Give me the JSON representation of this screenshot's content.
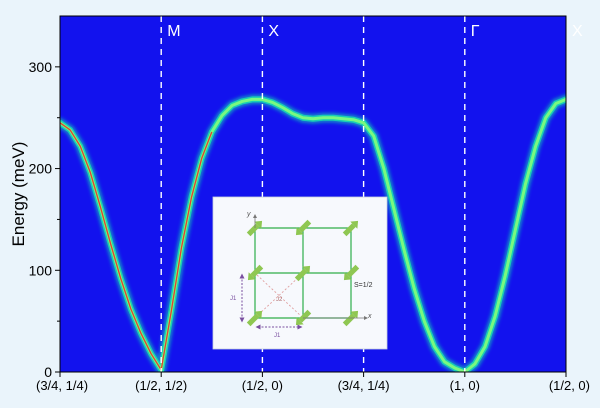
{
  "chart_data": {
    "type": "heatmap",
    "title": "",
    "xlabel": "",
    "ylabel": "Energy (meV)",
    "ylim": [
      0,
      350
    ],
    "yticks": [
      0,
      100,
      200,
      300
    ],
    "x_tick_labels": [
      "(3/4, 1/4)",
      "(1/2, 1/2)",
      "(1/2, 0)",
      "(3/4, 1/4)",
      "(1, 0)",
      "(1/2, 0)"
    ],
    "x_tick_positions": [
      0,
      1,
      2,
      3,
      4,
      5
    ],
    "xlim": [
      0,
      5
    ],
    "symmetry_points": [
      {
        "label": "M",
        "x": 1
      },
      {
        "label": "X",
        "x": 2
      },
      {
        "label": "",
        "x": 3
      },
      {
        "label": "Γ",
        "x": 4
      },
      {
        "label": "X",
        "x": 5
      }
    ],
    "colors": {
      "background": "#1212ee",
      "band_outer": "#19d6b2",
      "band_inner": "#7dfb7d",
      "band_core": "#ee2a2a"
    },
    "series": [
      {
        "x": [
          0,
          0.1,
          0.2,
          0.3,
          0.4,
          0.5,
          0.6,
          0.7,
          0.8,
          0.9,
          1.0,
          1.1,
          1.2,
          1.3,
          1.4,
          1.5,
          1.6,
          1.7,
          1.8,
          1.9,
          2.0,
          2.1,
          2.2,
          2.3,
          2.4,
          2.5,
          2.6,
          2.7,
          2.8,
          2.9,
          3.0,
          3.1,
          3.2,
          3.3,
          3.4,
          3.5,
          3.6,
          3.7,
          3.8,
          3.9,
          4.0,
          4.1,
          4.2,
          4.3,
          4.4,
          4.5,
          4.6,
          4.7,
          4.8,
          4.9,
          5.0
        ],
        "y": [
          245,
          238,
          222,
          196,
          162,
          126,
          92,
          62,
          38,
          18,
          2,
          60,
          122,
          172,
          210,
          236,
          252,
          262,
          266,
          268,
          268,
          265,
          260,
          254,
          250,
          249,
          250,
          250,
          249,
          248,
          245,
          232,
          200,
          160,
          120,
          82,
          50,
          25,
          10,
          4,
          0,
          8,
          25,
          55,
          95,
          140,
          185,
          222,
          250,
          264,
          268
        ]
      }
    ]
  },
  "inset": {
    "y_axis": "y",
    "x_axis": "x",
    "spin_label": "S=1/2",
    "j1_label": "J1",
    "j2_label": "J2"
  }
}
